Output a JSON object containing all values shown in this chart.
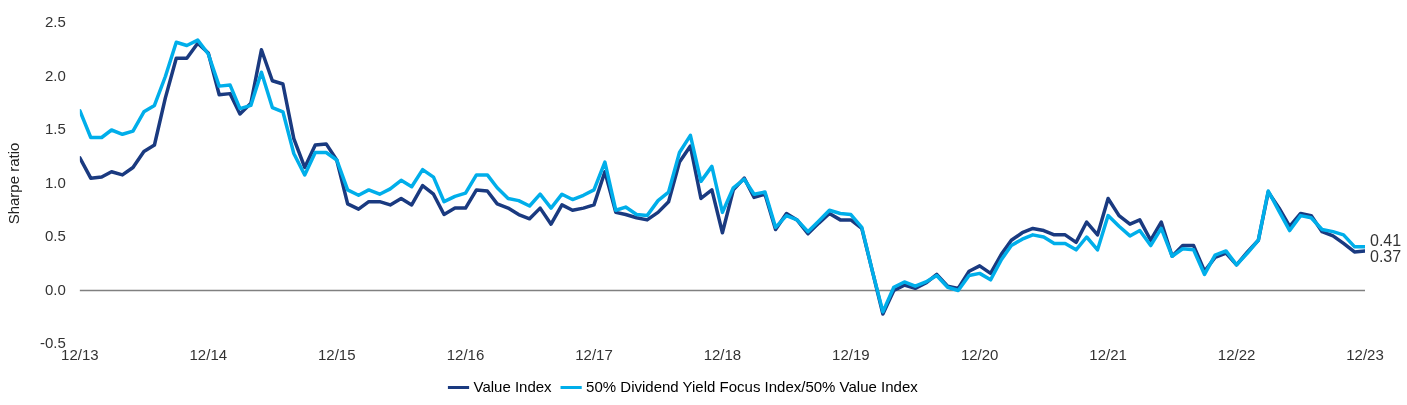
{
  "chart_data": {
    "type": "line",
    "ylabel": "Sharpe ratio",
    "legend": "bottom",
    "marker": "none",
    "line_style": "solid",
    "grid": false,
    "x": [
      "2013-12",
      "2014-01",
      "2014-02",
      "2014-03",
      "2014-04",
      "2014-05",
      "2014-06",
      "2014-07",
      "2014-08",
      "2014-09",
      "2014-10",
      "2014-11",
      "2014-12",
      "2015-01",
      "2015-02",
      "2015-03",
      "2015-04",
      "2015-05",
      "2015-06",
      "2015-07",
      "2015-08",
      "2015-09",
      "2015-10",
      "2015-11",
      "2015-12",
      "2016-01",
      "2016-02",
      "2016-03",
      "2016-04",
      "2016-05",
      "2016-06",
      "2016-07",
      "2016-08",
      "2016-09",
      "2016-10",
      "2016-11",
      "2016-12",
      "2017-01",
      "2017-02",
      "2017-03",
      "2017-04",
      "2017-05",
      "2017-06",
      "2017-07",
      "2017-08",
      "2017-09",
      "2017-10",
      "2017-11",
      "2017-12",
      "2018-01",
      "2018-02",
      "2018-03",
      "2018-04",
      "2018-05",
      "2018-06",
      "2018-07",
      "2018-08",
      "2018-09",
      "2018-10",
      "2018-11",
      "2018-12",
      "2019-01",
      "2019-02",
      "2019-03",
      "2019-04",
      "2019-05",
      "2019-06",
      "2019-07",
      "2019-08",
      "2019-09",
      "2019-10",
      "2019-11",
      "2019-12",
      "2020-01",
      "2020-02",
      "2020-03",
      "2020-04",
      "2020-05",
      "2020-06",
      "2020-07",
      "2020-08",
      "2020-09",
      "2020-10",
      "2020-11",
      "2020-12",
      "2021-01",
      "2021-02",
      "2021-03",
      "2021-04",
      "2021-05",
      "2021-06",
      "2021-07",
      "2021-08",
      "2021-09",
      "2021-10",
      "2021-11",
      "2021-12",
      "2022-01",
      "2022-02",
      "2022-03",
      "2022-04",
      "2022-05",
      "2022-06",
      "2022-07",
      "2022-08",
      "2022-09",
      "2022-10",
      "2022-11",
      "2022-12",
      "2023-01",
      "2023-02",
      "2023-03",
      "2023-04",
      "2023-05",
      "2023-06",
      "2023-07",
      "2023-08",
      "2023-09",
      "2023-10",
      "2023-11",
      "2023-12"
    ],
    "xlim": [
      "2013-12",
      "2023-12"
    ],
    "xticks": [
      {
        "value": "2013-12",
        "label": "12/13"
      },
      {
        "value": "2014-12",
        "label": "12/14"
      },
      {
        "value": "2015-12",
        "label": "12/15"
      },
      {
        "value": "2016-12",
        "label": "12/16"
      },
      {
        "value": "2017-12",
        "label": "12/17"
      },
      {
        "value": "2018-12",
        "label": "12/18"
      },
      {
        "value": "2019-12",
        "label": "12/19"
      },
      {
        "value": "2020-12",
        "label": "12/20"
      },
      {
        "value": "2021-12",
        "label": "12/21"
      },
      {
        "value": "2022-12",
        "label": "12/22"
      },
      {
        "value": "2023-12",
        "label": "12/23"
      }
    ],
    "ylim": [
      -0.5,
      2.5
    ],
    "yticks": [
      {
        "value": -0.5,
        "label": "-0.5"
      },
      {
        "value": 0,
        "label": "0.0"
      },
      {
        "value": 0.5,
        "label": "0.5"
      },
      {
        "value": 1,
        "label": "1.0"
      },
      {
        "value": 1.5,
        "label": "1.5"
      },
      {
        "value": 2,
        "label": "2.0"
      },
      {
        "value": 2.5,
        "label": "2.5"
      }
    ],
    "ref_lines": [
      {
        "axis": "y",
        "value": 0,
        "color": "#808080"
      }
    ],
    "series": [
      {
        "name": "Value Index",
        "color": "#1a3a80",
        "values": [
          1.24,
          1.05,
          1.06,
          1.11,
          1.08,
          1.15,
          1.3,
          1.36,
          1.8,
          2.17,
          2.17,
          2.31,
          2.22,
          1.83,
          1.84,
          1.65,
          1.75,
          2.25,
          1.96,
          1.93,
          1.42,
          1.15,
          1.36,
          1.37,
          1.22,
          0.81,
          0.76,
          0.83,
          0.83,
          0.8,
          0.86,
          0.8,
          0.98,
          0.9,
          0.71,
          0.77,
          0.77,
          0.94,
          0.93,
          0.81,
          0.77,
          0.71,
          0.67,
          0.77,
          0.62,
          0.8,
          0.75,
          0.77,
          0.8,
          1.11,
          0.73,
          0.71,
          0.68,
          0.66,
          0.73,
          0.83,
          1.2,
          1.35,
          0.86,
          0.94,
          0.54,
          0.94,
          1.05,
          0.87,
          0.9,
          0.57,
          0.72,
          0.66,
          0.53,
          0.63,
          0.72,
          0.66,
          0.66,
          0.58,
          0.17,
          -0.22,
          0.0,
          0.05,
          0.02,
          0.07,
          0.15,
          0.04,
          0.02,
          0.18,
          0.23,
          0.16,
          0.34,
          0.47,
          0.54,
          0.58,
          0.56,
          0.52,
          0.52,
          0.45,
          0.64,
          0.52,
          0.86,
          0.7,
          0.62,
          0.66,
          0.47,
          0.64,
          0.32,
          0.42,
          0.42,
          0.18,
          0.31,
          0.35,
          0.24,
          0.36,
          0.47,
          0.92,
          0.77,
          0.6,
          0.72,
          0.7,
          0.55,
          0.51,
          0.44,
          0.36,
          0.37
        ]
      },
      {
        "name": "50% Dividend Yield Focus Index/50% Value Index",
        "color": "#00aeea",
        "values": [
          1.68,
          1.43,
          1.43,
          1.5,
          1.46,
          1.49,
          1.67,
          1.73,
          2.0,
          2.32,
          2.29,
          2.34,
          2.21,
          1.91,
          1.92,
          1.7,
          1.73,
          2.04,
          1.71,
          1.67,
          1.28,
          1.08,
          1.29,
          1.29,
          1.22,
          0.94,
          0.89,
          0.94,
          0.9,
          0.95,
          1.03,
          0.97,
          1.13,
          1.06,
          0.83,
          0.88,
          0.91,
          1.08,
          1.08,
          0.96,
          0.86,
          0.84,
          0.79,
          0.9,
          0.77,
          0.9,
          0.85,
          0.89,
          0.94,
          1.2,
          0.75,
          0.78,
          0.71,
          0.7,
          0.84,
          0.92,
          1.29,
          1.45,
          1.02,
          1.16,
          0.73,
          0.96,
          1.04,
          0.9,
          0.92,
          0.59,
          0.7,
          0.66,
          0.55,
          0.65,
          0.75,
          0.72,
          0.71,
          0.59,
          0.17,
          -0.2,
          0.03,
          0.08,
          0.04,
          0.08,
          0.14,
          0.03,
          0.0,
          0.14,
          0.16,
          0.1,
          0.29,
          0.42,
          0.48,
          0.52,
          0.5,
          0.44,
          0.44,
          0.38,
          0.5,
          0.38,
          0.7,
          0.6,
          0.51,
          0.56,
          0.42,
          0.58,
          0.32,
          0.39,
          0.38,
          0.15,
          0.33,
          0.37,
          0.24,
          0.35,
          0.47,
          0.93,
          0.74,
          0.56,
          0.7,
          0.68,
          0.57,
          0.55,
          0.52,
          0.41,
          0.41
        ]
      }
    ],
    "annotations": [
      {
        "text": "0.41",
        "x": "2023-12",
        "y": 0.41
      },
      {
        "text": "0.37",
        "x": "2023-12",
        "y": 0.37
      }
    ]
  }
}
